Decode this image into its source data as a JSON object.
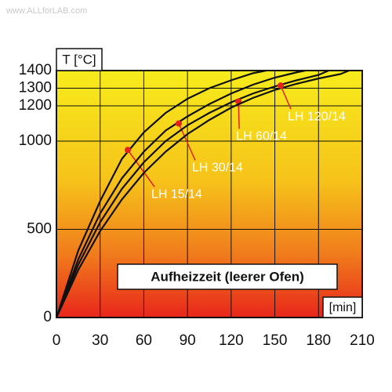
{
  "chart_data": {
    "type": "line",
    "watermark": "www.ALLforLAB.com",
    "y_label": "T [°C]",
    "x_label": "[min]",
    "annotation": "Aufheizzeit (leerer Ofen)",
    "xlim": [
      0,
      210
    ],
    "xticks": [
      0,
      30,
      60,
      90,
      120,
      150,
      180,
      210
    ],
    "ylim": [
      0,
      1400
    ],
    "yticks": [
      0,
      500,
      1000,
      1200,
      1300,
      1400
    ],
    "grid": true,
    "marker_color": "#e3221c",
    "series": [
      {
        "name": "LH 15/14",
        "color": "#111111",
        "x": [
          0,
          15,
          30,
          45,
          60,
          75,
          90,
          105,
          120,
          135,
          144
        ],
        "values": [
          0,
          380,
          660,
          900,
          1050,
          1160,
          1240,
          1300,
          1345,
          1385,
          1400
        ],
        "marker": {
          "x": 49,
          "y": 950
        }
      },
      {
        "name": "LH 30/14",
        "color": "#111111",
        "x": [
          0,
          15,
          30,
          45,
          60,
          75,
          90,
          105,
          120,
          135,
          150,
          165,
          171
        ],
        "values": [
          0,
          330,
          590,
          790,
          940,
          1060,
          1140,
          1210,
          1270,
          1320,
          1360,
          1390,
          1400
        ],
        "marker": {
          "x": 84,
          "y": 1100
        }
      },
      {
        "name": "LH 60/14",
        "color": "#111111",
        "x": [
          0,
          15,
          30,
          45,
          60,
          75,
          90,
          105,
          120,
          135,
          150,
          165,
          180,
          187
        ],
        "values": [
          0,
          300,
          540,
          730,
          880,
          1000,
          1090,
          1160,
          1220,
          1270,
          1310,
          1345,
          1375,
          1400
        ],
        "marker": {
          "x": 125,
          "y": 1225
        }
      },
      {
        "name": "LH 120/14",
        "color": "#111111",
        "x": [
          0,
          15,
          30,
          45,
          60,
          75,
          90,
          105,
          120,
          135,
          150,
          165,
          180,
          195,
          201
        ],
        "values": [
          0,
          270,
          490,
          670,
          820,
          940,
          1040,
          1120,
          1190,
          1245,
          1290,
          1325,
          1355,
          1380,
          1400
        ],
        "marker": {
          "x": 154,
          "y": 1315
        }
      }
    ]
  }
}
